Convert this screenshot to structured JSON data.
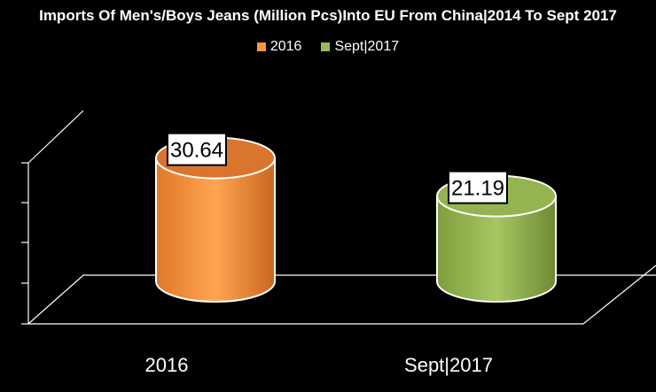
{
  "chart_data": {
    "type": "bar",
    "title": "Imports Of Men's/Boys Jeans (Million Pcs)Into EU From China|2014 To Sept 2017",
    "categories": [
      "2016",
      "Sept|2017"
    ],
    "series": [
      {
        "name": "2016",
        "color": "#F79646",
        "values": [
          30.64,
          null
        ]
      },
      {
        "name": "Sept|2017",
        "color": "#9BBB59",
        "values": [
          null,
          21.19
        ]
      }
    ],
    "data_labels": [
      "30.64",
      "21.19"
    ],
    "legend_position": "top",
    "grid": false,
    "ylim": [
      0,
      40
    ]
  }
}
